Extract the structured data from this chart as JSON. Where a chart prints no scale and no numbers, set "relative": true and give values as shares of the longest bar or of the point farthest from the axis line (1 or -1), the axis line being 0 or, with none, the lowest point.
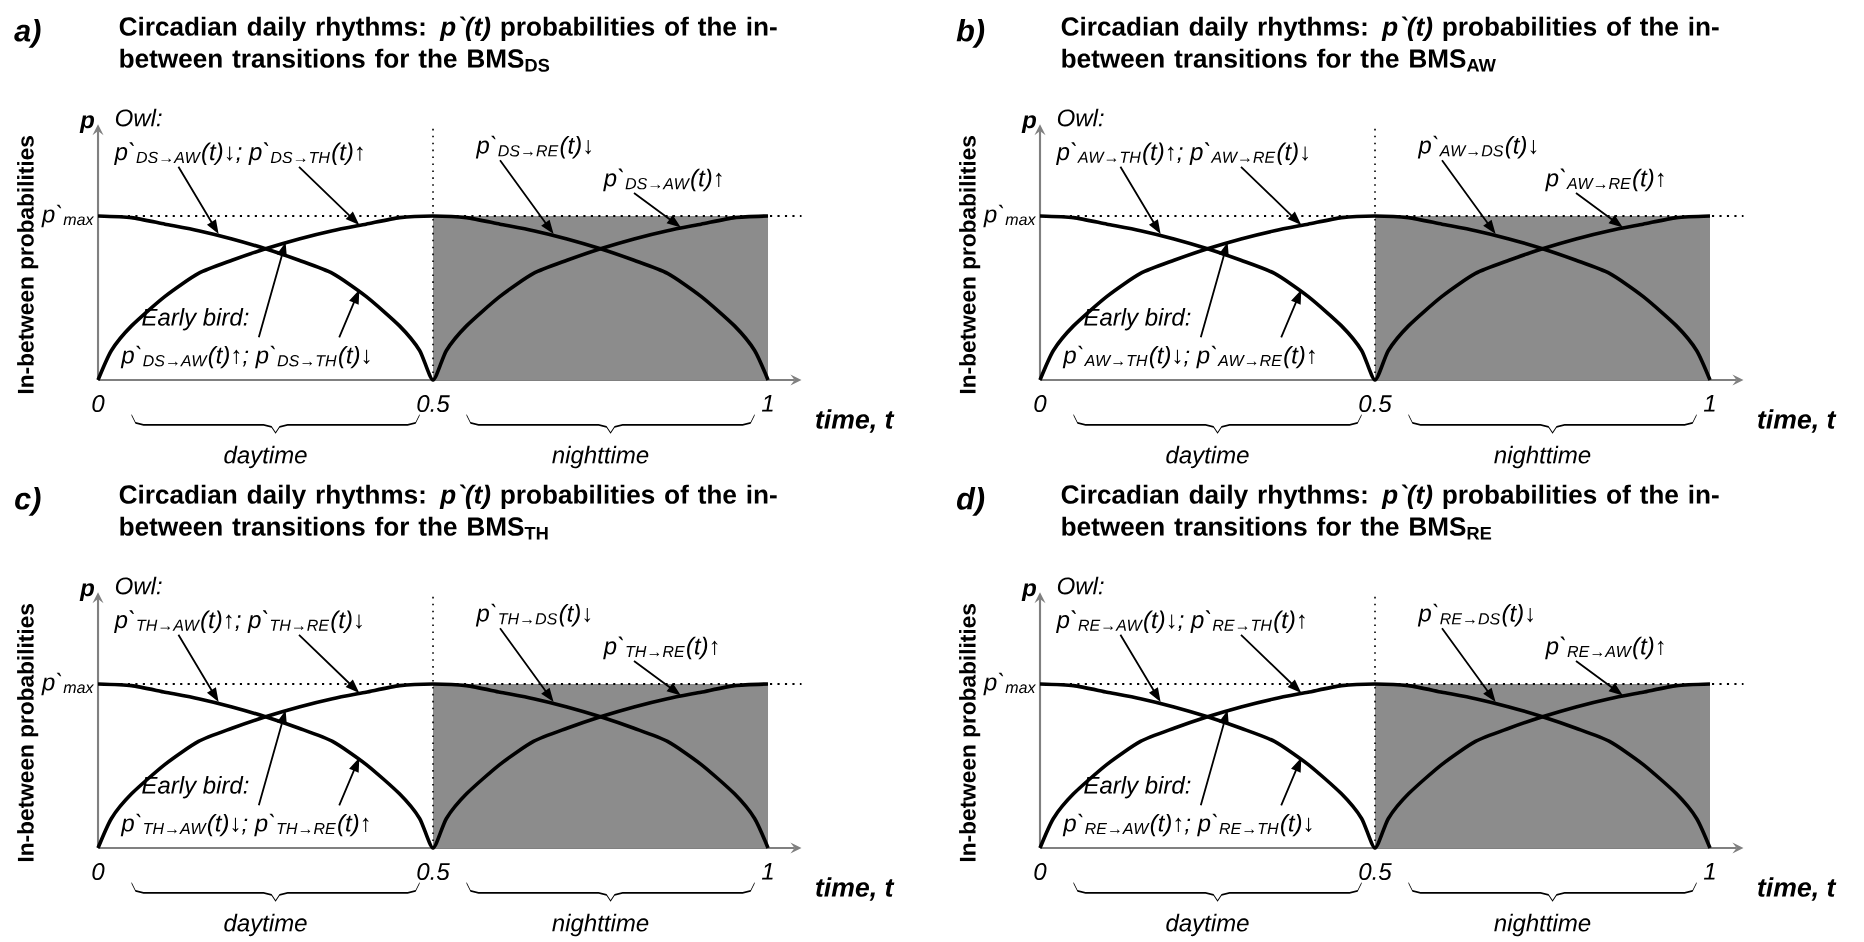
{
  "chart_data": [
    {
      "type": "line",
      "title": "Circadian daily rhythms: *p`(t)* probabilities of the in-between transitions for the BMS$_{DS}$",
      "xlabel": "time, t",
      "ylabel": "In-between probabilities",
      "relative": true,
      "xlim": [
        0,
        1.05
      ],
      "xticks": [
        0,
        0.5,
        1
      ],
      "annotations": [
        "a)",
        "p",
        "Owl:",
        "p`$_{DS→AW}$(t)↓; p`$_{DS→TH}$(t)↑",
        "Early bird:",
        "p`$_{DS→AW}$(t)↑; p`$_{DS→TH}$(t)↓",
        "p`$_{DS→RE}$(t)↓",
        "p`$_{DS→AW}$(t)↑",
        "daytime"
      ],
      "ref_lines": [
        {
          "axis": "y",
          "value": 1,
          "label": "p`$_{max}$",
          "line_style": "dotted"
        },
        {
          "axis": "x",
          "value": 0.5,
          "line_style": "dotted"
        }
      ],
      "bands": [
        {
          "axis": "x",
          "from": 0.5,
          "to": 1,
          "label": "nighttime",
          "color": "#8c8c8c"
        }
      ],
      "series": [
        {
          "color": "#000000",
          "x": [
            0,
            0.02,
            0.05,
            0.1,
            0.15,
            0.2,
            0.25,
            0.3,
            0.35,
            0.4,
            0.45,
            0.5,
            0.55,
            0.6,
            0.65,
            0.7,
            0.75,
            0.8,
            0.85,
            0.9,
            0.95,
            0.98,
            1
          ],
          "values": [
            0,
            0.18,
            0.33,
            0.51,
            0.65,
            0.73,
            0.8,
            0.86,
            0.91,
            0.95,
            0.99,
            1,
            0.99,
            0.95,
            0.91,
            0.86,
            0.8,
            0.73,
            0.65,
            0.51,
            0.33,
            0.18,
            0
          ]
        },
        {
          "color": "#000000",
          "x": [
            0,
            0.05,
            0.1,
            0.15,
            0.2,
            0.25,
            0.3,
            0.35,
            0.4,
            0.45,
            0.48,
            0.5,
            0.52,
            0.55,
            0.6,
            0.65,
            0.7,
            0.75,
            0.8,
            0.85,
            0.9,
            0.95,
            1
          ],
          "values": [
            1,
            0.99,
            0.95,
            0.91,
            0.86,
            0.8,
            0.73,
            0.65,
            0.51,
            0.33,
            0.18,
            0,
            0.18,
            0.33,
            0.51,
            0.65,
            0.73,
            0.8,
            0.86,
            0.91,
            0.95,
            0.99,
            1
          ]
        }
      ]
    },
    {
      "type": "line",
      "title": "Circadian daily rhythms: *p`(t)* probabilities of the in-between transitions for the BMS$_{AW}$",
      "xlabel": "time, t",
      "ylabel": "In-between probabilities",
      "relative": true,
      "xlim": [
        0,
        1.05
      ],
      "xticks": [
        0,
        0.5,
        1
      ],
      "annotations": [
        "b)",
        "p",
        "Owl:",
        "p`$_{AW→TH}$(t)↑; p`$_{AW→RE}$(t)↓",
        "Early bird:",
        "p`$_{AW→TH}$(t)↓; p`$_{AW→RE}$(t)↑",
        "p`$_{AW→DS}$(t)↓",
        "p`$_{AW→RE}$(t)↑",
        "daytime"
      ],
      "ref_lines": [
        {
          "axis": "y",
          "value": 1,
          "label": "p`$_{max}$",
          "line_style": "dotted"
        },
        {
          "axis": "x",
          "value": 0.5,
          "line_style": "dotted"
        }
      ],
      "bands": [
        {
          "axis": "x",
          "from": 0.5,
          "to": 1,
          "label": "nighttime",
          "color": "#8c8c8c"
        }
      ],
      "series": [
        {
          "color": "#000000",
          "x": [
            0,
            0.02,
            0.05,
            0.1,
            0.15,
            0.2,
            0.25,
            0.3,
            0.35,
            0.4,
            0.45,
            0.5,
            0.55,
            0.6,
            0.65,
            0.7,
            0.75,
            0.8,
            0.85,
            0.9,
            0.95,
            0.98,
            1
          ],
          "values": [
            0,
            0.18,
            0.33,
            0.51,
            0.65,
            0.73,
            0.8,
            0.86,
            0.91,
            0.95,
            0.99,
            1,
            0.99,
            0.95,
            0.91,
            0.86,
            0.8,
            0.73,
            0.65,
            0.51,
            0.33,
            0.18,
            0
          ]
        },
        {
          "color": "#000000",
          "x": [
            0,
            0.05,
            0.1,
            0.15,
            0.2,
            0.25,
            0.3,
            0.35,
            0.4,
            0.45,
            0.48,
            0.5,
            0.52,
            0.55,
            0.6,
            0.65,
            0.7,
            0.75,
            0.8,
            0.85,
            0.9,
            0.95,
            1
          ],
          "values": [
            1,
            0.99,
            0.95,
            0.91,
            0.86,
            0.8,
            0.73,
            0.65,
            0.51,
            0.33,
            0.18,
            0,
            0.18,
            0.33,
            0.51,
            0.65,
            0.73,
            0.8,
            0.86,
            0.91,
            0.95,
            0.99,
            1
          ]
        }
      ]
    },
    {
      "type": "line",
      "title": "Circadian daily rhythms: *p`(t)* probabilities of the in-between transitions for the BMS$_{TH}$",
      "xlabel": "time, t",
      "ylabel": "In-between probabilities",
      "relative": true,
      "xlim": [
        0,
        1.05
      ],
      "xticks": [
        0,
        0.5,
        1
      ],
      "annotations": [
        "c)",
        "p",
        "Owl:",
        "p`$_{TH→AW}$(t)↑; p`$_{TH→RE}$(t)↓",
        "Early bird:",
        "p`$_{TH→AW}$(t)↓; p`$_{TH→RE}$(t)↑",
        "p`$_{TH→DS}$(t)↓",
        "p`$_{TH→RE}$(t)↑",
        "daytime"
      ],
      "ref_lines": [
        {
          "axis": "y",
          "value": 1,
          "label": "p`$_{max}$",
          "line_style": "dotted"
        },
        {
          "axis": "x",
          "value": 0.5,
          "line_style": "dotted"
        }
      ],
      "bands": [
        {
          "axis": "x",
          "from": 0.5,
          "to": 1,
          "label": "nighttime",
          "color": "#8c8c8c"
        }
      ],
      "series": [
        {
          "color": "#000000",
          "x": [
            0,
            0.02,
            0.05,
            0.1,
            0.15,
            0.2,
            0.25,
            0.3,
            0.35,
            0.4,
            0.45,
            0.5,
            0.55,
            0.6,
            0.65,
            0.7,
            0.75,
            0.8,
            0.85,
            0.9,
            0.95,
            0.98,
            1
          ],
          "values": [
            0,
            0.18,
            0.33,
            0.51,
            0.65,
            0.73,
            0.8,
            0.86,
            0.91,
            0.95,
            0.99,
            1,
            0.99,
            0.95,
            0.91,
            0.86,
            0.8,
            0.73,
            0.65,
            0.51,
            0.33,
            0.18,
            0
          ]
        },
        {
          "color": "#000000",
          "x": [
            0,
            0.05,
            0.1,
            0.15,
            0.2,
            0.25,
            0.3,
            0.35,
            0.4,
            0.45,
            0.48,
            0.5,
            0.52,
            0.55,
            0.6,
            0.65,
            0.7,
            0.75,
            0.8,
            0.85,
            0.9,
            0.95,
            1
          ],
          "values": [
            1,
            0.99,
            0.95,
            0.91,
            0.86,
            0.8,
            0.73,
            0.65,
            0.51,
            0.33,
            0.18,
            0,
            0.18,
            0.33,
            0.51,
            0.65,
            0.73,
            0.8,
            0.86,
            0.91,
            0.95,
            0.99,
            1
          ]
        }
      ]
    },
    {
      "type": "line",
      "title": "Circadian daily rhythms: *p`(t)* probabilities of the in-between transitions for the BMS$_{RE}$",
      "xlabel": "time, t",
      "ylabel": "In-between probabilities",
      "relative": true,
      "xlim": [
        0,
        1.05
      ],
      "xticks": [
        0,
        0.5,
        1
      ],
      "annotations": [
        "d)",
        "p",
        "Owl:",
        "p`$_{RE→AW}$(t)↓; p`$_{RE→TH}$(t)↑",
        "Early bird:",
        "p`$_{RE→AW}$(t)↑; p`$_{RE→TH}$(t)↓",
        "p`$_{RE→DS}$(t)↓",
        "p`$_{RE→AW}$(t)↑",
        "daytime"
      ],
      "ref_lines": [
        {
          "axis": "y",
          "value": 1,
          "label": "p`$_{max}$",
          "line_style": "dotted"
        },
        {
          "axis": "x",
          "value": 0.5,
          "line_style": "dotted"
        }
      ],
      "bands": [
        {
          "axis": "x",
          "from": 0.5,
          "to": 1,
          "label": "nighttime",
          "color": "#8c8c8c"
        }
      ],
      "series": [
        {
          "color": "#000000",
          "x": [
            0,
            0.02,
            0.05,
            0.1,
            0.15,
            0.2,
            0.25,
            0.3,
            0.35,
            0.4,
            0.45,
            0.5,
            0.55,
            0.6,
            0.65,
            0.7,
            0.75,
            0.8,
            0.85,
            0.9,
            0.95,
            0.98,
            1
          ],
          "values": [
            0,
            0.18,
            0.33,
            0.51,
            0.65,
            0.73,
            0.8,
            0.86,
            0.91,
            0.95,
            0.99,
            1,
            0.99,
            0.95,
            0.91,
            0.86,
            0.8,
            0.73,
            0.65,
            0.51,
            0.33,
            0.18,
            0
          ]
        },
        {
          "color": "#000000",
          "x": [
            0,
            0.05,
            0.1,
            0.15,
            0.2,
            0.25,
            0.3,
            0.35,
            0.4,
            0.45,
            0.48,
            0.5,
            0.52,
            0.55,
            0.6,
            0.65,
            0.7,
            0.75,
            0.8,
            0.85,
            0.9,
            0.95,
            1
          ],
          "values": [
            1,
            0.99,
            0.95,
            0.91,
            0.86,
            0.8,
            0.73,
            0.65,
            0.51,
            0.33,
            0.18,
            0,
            0.18,
            0.33,
            0.51,
            0.65,
            0.73,
            0.8,
            0.86,
            0.91,
            0.95,
            0.99,
            1
          ]
        }
      ]
    }
  ]
}
